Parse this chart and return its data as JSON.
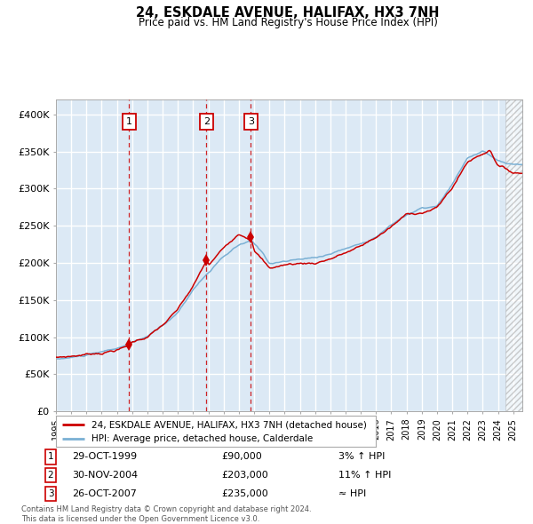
{
  "title": "24, ESKDALE AVENUE, HALIFAX, HX3 7NH",
  "subtitle": "Price paid vs. HM Land Registry's House Price Index (HPI)",
  "background_color": "#ffffff",
  "plot_bg_color": "#dce9f5",
  "grid_color": "#ffffff",
  "hpi_line_color": "#7ab0d4",
  "price_line_color": "#cc0000",
  "marker_color": "#cc0000",
  "vline_color": "#cc0000",
  "ylim": [
    0,
    420000
  ],
  "yticks": [
    0,
    50000,
    100000,
    150000,
    200000,
    250000,
    300000,
    350000,
    400000
  ],
  "ytick_labels": [
    "£0",
    "£50K",
    "£100K",
    "£150K",
    "£200K",
    "£250K",
    "£300K",
    "£350K",
    "£400K"
  ],
  "legend_label_price": "24, ESKDALE AVENUE, HALIFAX, HX3 7NH (detached house)",
  "legend_label_hpi": "HPI: Average price, detached house, Calderdale",
  "sale1_date": "29-OCT-1999",
  "sale1_price": 90000,
  "sale1_pct": "3% ↑ HPI",
  "sale2_date": "30-NOV-2004",
  "sale2_price": 203000,
  "sale2_pct": "11% ↑ HPI",
  "sale3_date": "26-OCT-2007",
  "sale3_price": 235000,
  "sale3_pct": "≈ HPI",
  "footer_line1": "Contains HM Land Registry data © Crown copyright and database right 2024.",
  "footer_line2": "This data is licensed under the Open Government Licence v3.0."
}
